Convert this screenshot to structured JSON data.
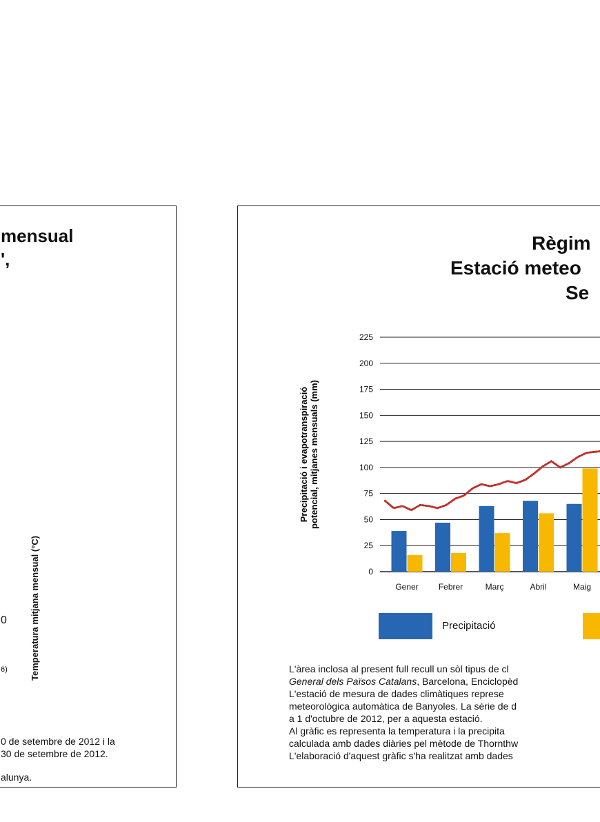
{
  "left_panel": {
    "title_line1": "mensual",
    "title_line2": "',",
    "axis_label": "Temperatura mitjana mensual (°C)",
    "tick_0": "0",
    "note": "6)",
    "text_lines": [
      "0 de setembre de 2012 i la",
      "30 de setembre de 2012.",
      "alunya."
    ]
  },
  "right_panel": {
    "title_line1": "Règim",
    "title_line2": "Estació meteo",
    "title_line3": "Se",
    "legend": [
      {
        "label": "Precipitació",
        "color": "#2766b3"
      },
      {
        "label": "",
        "color": "#f9b800"
      }
    ],
    "description": {
      "line1": "L'àrea inclosa al present full recull un sòl tipus de cl",
      "line2_italic": "General dels Països Catalans",
      "line2_rest": ", Barcelona, Enciclopèd",
      "line3": "L'estació de mesura de dades climàtiques represe",
      "line4": "meteorològica automàtica de Banyoles. La sèrie de d",
      "line5": "a 1 d'octubre de 2012, per a aquesta estació.",
      "line6": "Al gràfic es representa la temperatura i la precipita",
      "line7": "calculada amb dades diàries pel mètode de Thornthw",
      "line8": "L'elaboració d'aquest gràfic s'ha realitzat amb dades"
    }
  },
  "chart_data": {
    "type": "bar",
    "categories": [
      "Gener",
      "Febrer",
      "Març",
      "Abril",
      "Maig"
    ],
    "series": [
      {
        "name": "Precipitació",
        "color": "#2766b3",
        "values": [
          39,
          47,
          63,
          68,
          65
        ]
      },
      {
        "name": "",
        "color": "#f9b800",
        "values": [
          16,
          18,
          37,
          56,
          99
        ]
      }
    ],
    "line_series": {
      "color": "#c0302b",
      "style": "dotted",
      "x": [
        0.0,
        0.2,
        0.4,
        0.6,
        0.8,
        1.0,
        1.2,
        1.4,
        1.6,
        1.8,
        2.0,
        2.2,
        2.4,
        2.6,
        2.8,
        3.0,
        3.2,
        3.4,
        3.6,
        3.8,
        4.0,
        4.2,
        4.4,
        4.6,
        4.8,
        5.0
      ],
      "values": [
        68,
        61,
        63,
        59,
        64,
        63,
        61,
        64,
        70,
        73,
        80,
        84,
        82,
        84,
        87,
        85,
        88,
        94,
        101,
        106,
        100,
        104,
        110,
        114,
        115,
        116
      ]
    },
    "ylabel": "Precipitació i evapotranspiració potencial, mitjanes mensuals (mm)",
    "ylim": [
      0,
      225
    ],
    "yticks": [
      0,
      25,
      50,
      75,
      100,
      125,
      150,
      175,
      200,
      225
    ],
    "grid": true
  }
}
